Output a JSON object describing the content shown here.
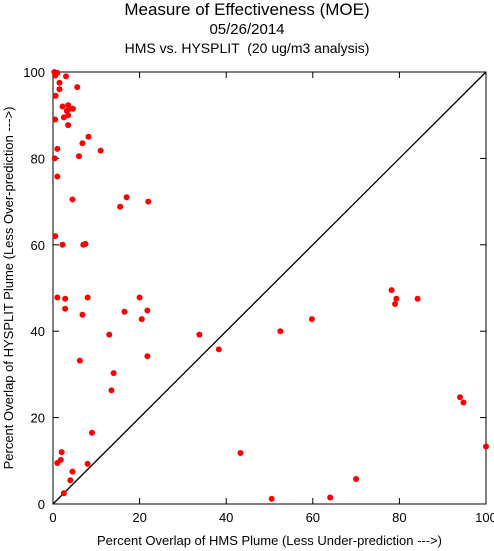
{
  "titles": {
    "line1": "Measure of Effectiveness (MOE)",
    "line2": "05/26/2014",
    "line3": "HMS vs. HYSPLIT  (20 ug/m3 analysis)"
  },
  "chart_data": {
    "type": "scatter",
    "xlabel": "Percent Overlap of HMS Plume (Less Under-prediction --->)",
    "ylabel": "Percent Overlap of HYSPLIT Plume (Less Over-prediction --->)",
    "xlim": [
      0,
      100
    ],
    "ylim": [
      0,
      100
    ],
    "xticks": [
      0,
      20,
      40,
      60,
      80,
      100
    ],
    "yticks": [
      0,
      20,
      40,
      60,
      80,
      100
    ],
    "point_color": "#ff0000",
    "reference_line": "y = x",
    "grid": false,
    "points": [
      {
        "x": 0.3,
        "y": 100
      },
      {
        "x": 1.0,
        "y": 99.8
      },
      {
        "x": 0.5,
        "y": 99.2
      },
      {
        "x": 3.0,
        "y": 99.0
      },
      {
        "x": 1.5,
        "y": 97.5
      },
      {
        "x": 5.6,
        "y": 96.5
      },
      {
        "x": 1.5,
        "y": 96.0
      },
      {
        "x": 0.6,
        "y": 94.5
      },
      {
        "x": 3.5,
        "y": 92.3
      },
      {
        "x": 2.2,
        "y": 92.0
      },
      {
        "x": 3.8,
        "y": 91.5
      },
      {
        "x": 4.6,
        "y": 91.5
      },
      {
        "x": 3.2,
        "y": 91.0
      },
      {
        "x": 3.5,
        "y": 90.0
      },
      {
        "x": 2.5,
        "y": 89.5
      },
      {
        "x": 0.5,
        "y": 89.0
      },
      {
        "x": 3.5,
        "y": 87.7
      },
      {
        "x": 8.2,
        "y": 85.0
      },
      {
        "x": 6.8,
        "y": 83.5
      },
      {
        "x": 1.0,
        "y": 82.2
      },
      {
        "x": 11.0,
        "y": 81.8
      },
      {
        "x": 6.0,
        "y": 80.5
      },
      {
        "x": 0.4,
        "y": 80.0
      },
      {
        "x": 1.0,
        "y": 75.8
      },
      {
        "x": 17.0,
        "y": 71.0
      },
      {
        "x": 4.5,
        "y": 70.5
      },
      {
        "x": 22.0,
        "y": 70.0
      },
      {
        "x": 15.5,
        "y": 68.8
      },
      {
        "x": 0.5,
        "y": 62.0
      },
      {
        "x": 7.5,
        "y": 60.2
      },
      {
        "x": 2.2,
        "y": 60.0
      },
      {
        "x": 7.0,
        "y": 60.0
      },
      {
        "x": 1.0,
        "y": 47.8
      },
      {
        "x": 2.8,
        "y": 47.5
      },
      {
        "x": 8.0,
        "y": 47.8
      },
      {
        "x": 20.0,
        "y": 47.8
      },
      {
        "x": 16.5,
        "y": 44.5
      },
      {
        "x": 2.8,
        "y": 45.2
      },
      {
        "x": 6.8,
        "y": 43.8
      },
      {
        "x": 21.8,
        "y": 44.8
      },
      {
        "x": 20.5,
        "y": 42.8
      },
      {
        "x": 13.0,
        "y": 39.2
      },
      {
        "x": 33.8,
        "y": 39.2
      },
      {
        "x": 52.5,
        "y": 40.0
      },
      {
        "x": 59.8,
        "y": 42.8
      },
      {
        "x": 38.3,
        "y": 35.8
      },
      {
        "x": 6.2,
        "y": 33.2
      },
      {
        "x": 21.8,
        "y": 34.2
      },
      {
        "x": 14.0,
        "y": 30.3
      },
      {
        "x": 13.5,
        "y": 26.3
      },
      {
        "x": 78.2,
        "y": 49.5
      },
      {
        "x": 79.3,
        "y": 47.5
      },
      {
        "x": 84.2,
        "y": 47.5
      },
      {
        "x": 79.0,
        "y": 46.3
      },
      {
        "x": 94.0,
        "y": 24.7
      },
      {
        "x": 94.8,
        "y": 23.5
      },
      {
        "x": 100,
        "y": 13.3
      },
      {
        "x": 9.0,
        "y": 16.5
      },
      {
        "x": 2.0,
        "y": 12.0
      },
      {
        "x": 43.3,
        "y": 11.8
      },
      {
        "x": 1.0,
        "y": 9.5
      },
      {
        "x": 1.8,
        "y": 10.2
      },
      {
        "x": 8.0,
        "y": 9.3
      },
      {
        "x": 4.5,
        "y": 7.5
      },
      {
        "x": 4.0,
        "y": 5.5
      },
      {
        "x": 70.0,
        "y": 5.8
      },
      {
        "x": 2.5,
        "y": 2.5
      },
      {
        "x": 64.0,
        "y": 1.5
      },
      {
        "x": 50.5,
        "y": 1.2
      }
    ]
  }
}
